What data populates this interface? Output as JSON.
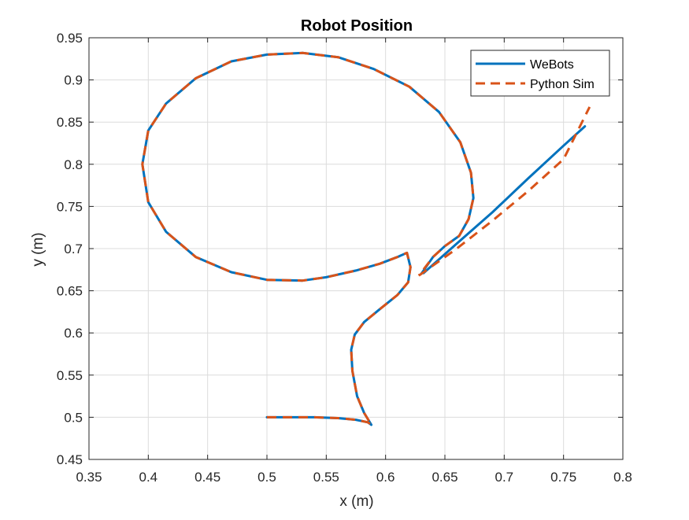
{
  "chart_data": {
    "type": "line",
    "title": "Robot Position",
    "xlabel": "x (m)",
    "ylabel": "y (m)",
    "xlim": [
      0.35,
      0.8
    ],
    "ylim": [
      0.45,
      0.95
    ],
    "xticks": [
      "0.35",
      "0.4",
      "0.45",
      "0.5",
      "0.55",
      "0.6",
      "0.65",
      "0.7",
      "0.75",
      "0.8"
    ],
    "yticks": [
      "0.45",
      "0.5",
      "0.55",
      "0.6",
      "0.65",
      "0.7",
      "0.75",
      "0.8",
      "0.85",
      "0.9",
      "0.95"
    ],
    "grid": true,
    "legend_position": "top-right",
    "series": [
      {
        "name": "WeBots",
        "color": "#0072BD",
        "style": "solid",
        "x": [
          0.5,
          0.52,
          0.54,
          0.56,
          0.575,
          0.585,
          0.588,
          0.582,
          0.576,
          0.572,
          0.571,
          0.574,
          0.582,
          0.595,
          0.61,
          0.619,
          0.621,
          0.618,
          0.61,
          0.595,
          0.575,
          0.55,
          0.53,
          0.5,
          0.47,
          0.44,
          0.415,
          0.4,
          0.395,
          0.4,
          0.415,
          0.44,
          0.47,
          0.5,
          0.53,
          0.56,
          0.59,
          0.62,
          0.645,
          0.663,
          0.672,
          0.674,
          0.67,
          0.662,
          0.65,
          0.64,
          0.63
        ],
        "y": [
          0.5,
          0.5,
          0.5,
          0.499,
          0.497,
          0.494,
          0.491,
          0.505,
          0.525,
          0.555,
          0.58,
          0.598,
          0.613,
          0.628,
          0.645,
          0.66,
          0.678,
          0.695,
          0.69,
          0.682,
          0.674,
          0.666,
          0.662,
          0.663,
          0.672,
          0.69,
          0.72,
          0.755,
          0.8,
          0.84,
          0.872,
          0.902,
          0.922,
          0.93,
          0.932,
          0.927,
          0.913,
          0.892,
          0.862,
          0.826,
          0.79,
          0.76,
          0.735,
          0.715,
          0.703,
          0.69,
          0.67
        ],
        "x2": [
          0.632,
          0.66,
          0.69,
          0.72,
          0.75,
          0.768
        ],
        "y2": [
          0.671,
          0.706,
          0.743,
          0.783,
          0.822,
          0.845
        ]
      },
      {
        "name": "Python Sim",
        "color": "#D95319",
        "style": "dashed",
        "x": [
          0.5,
          0.52,
          0.54,
          0.56,
          0.575,
          0.585,
          0.588,
          0.582,
          0.576,
          0.572,
          0.571,
          0.574,
          0.582,
          0.595,
          0.61,
          0.619,
          0.621,
          0.618,
          0.61,
          0.595,
          0.575,
          0.55,
          0.53,
          0.5,
          0.47,
          0.44,
          0.415,
          0.4,
          0.395,
          0.4,
          0.415,
          0.44,
          0.47,
          0.5,
          0.53,
          0.56,
          0.59,
          0.62,
          0.645,
          0.663,
          0.672,
          0.674,
          0.67,
          0.662,
          0.65,
          0.64,
          0.628
        ],
        "y": [
          0.5,
          0.5,
          0.5,
          0.499,
          0.497,
          0.494,
          0.491,
          0.505,
          0.525,
          0.555,
          0.58,
          0.598,
          0.613,
          0.628,
          0.645,
          0.66,
          0.678,
          0.695,
          0.69,
          0.682,
          0.674,
          0.666,
          0.662,
          0.663,
          0.672,
          0.69,
          0.72,
          0.755,
          0.8,
          0.84,
          0.872,
          0.902,
          0.922,
          0.93,
          0.932,
          0.927,
          0.913,
          0.892,
          0.862,
          0.826,
          0.79,
          0.76,
          0.735,
          0.715,
          0.703,
          0.69,
          0.668
        ],
        "x2": [
          0.628,
          0.66,
          0.69,
          0.72,
          0.75,
          0.772
        ],
        "y2": [
          0.668,
          0.7,
          0.733,
          0.768,
          0.806,
          0.868
        ]
      }
    ]
  }
}
